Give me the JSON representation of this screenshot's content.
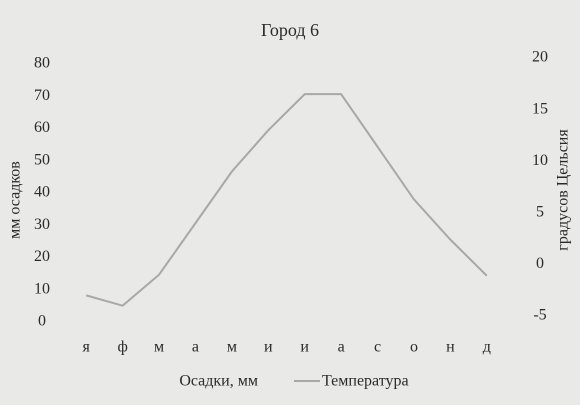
{
  "chart_data": {
    "type": "line",
    "title": "Город 6",
    "categories": [
      "я",
      "ф",
      "м",
      "а",
      "м",
      "и",
      "и",
      "а",
      "с",
      "о",
      "н",
      "д"
    ],
    "series": [
      {
        "name": "Осадки, мм",
        "color": "#ffffff",
        "values": [
          null,
          null,
          null,
          null,
          null,
          null,
          null,
          null,
          null,
          null,
          null,
          null
        ]
      },
      {
        "name": "Температура",
        "color": "#a8a8a8",
        "axis": "y2",
        "values": [
          -3,
          -4,
          -1,
          4,
          9,
          13,
          16.5,
          16.5,
          11.4,
          6.3,
          2.4,
          -1.1
        ]
      }
    ],
    "ylabel": "мм осадков",
    "y2label": "градусов Цельсия",
    "ylim": [
      0,
      80
    ],
    "yticks": [
      0,
      10,
      20,
      30,
      40,
      50,
      60,
      70,
      80
    ],
    "y2lim": [
      -5,
      20
    ],
    "y2ticks": [
      -5,
      0,
      5,
      10,
      15,
      20
    ]
  }
}
